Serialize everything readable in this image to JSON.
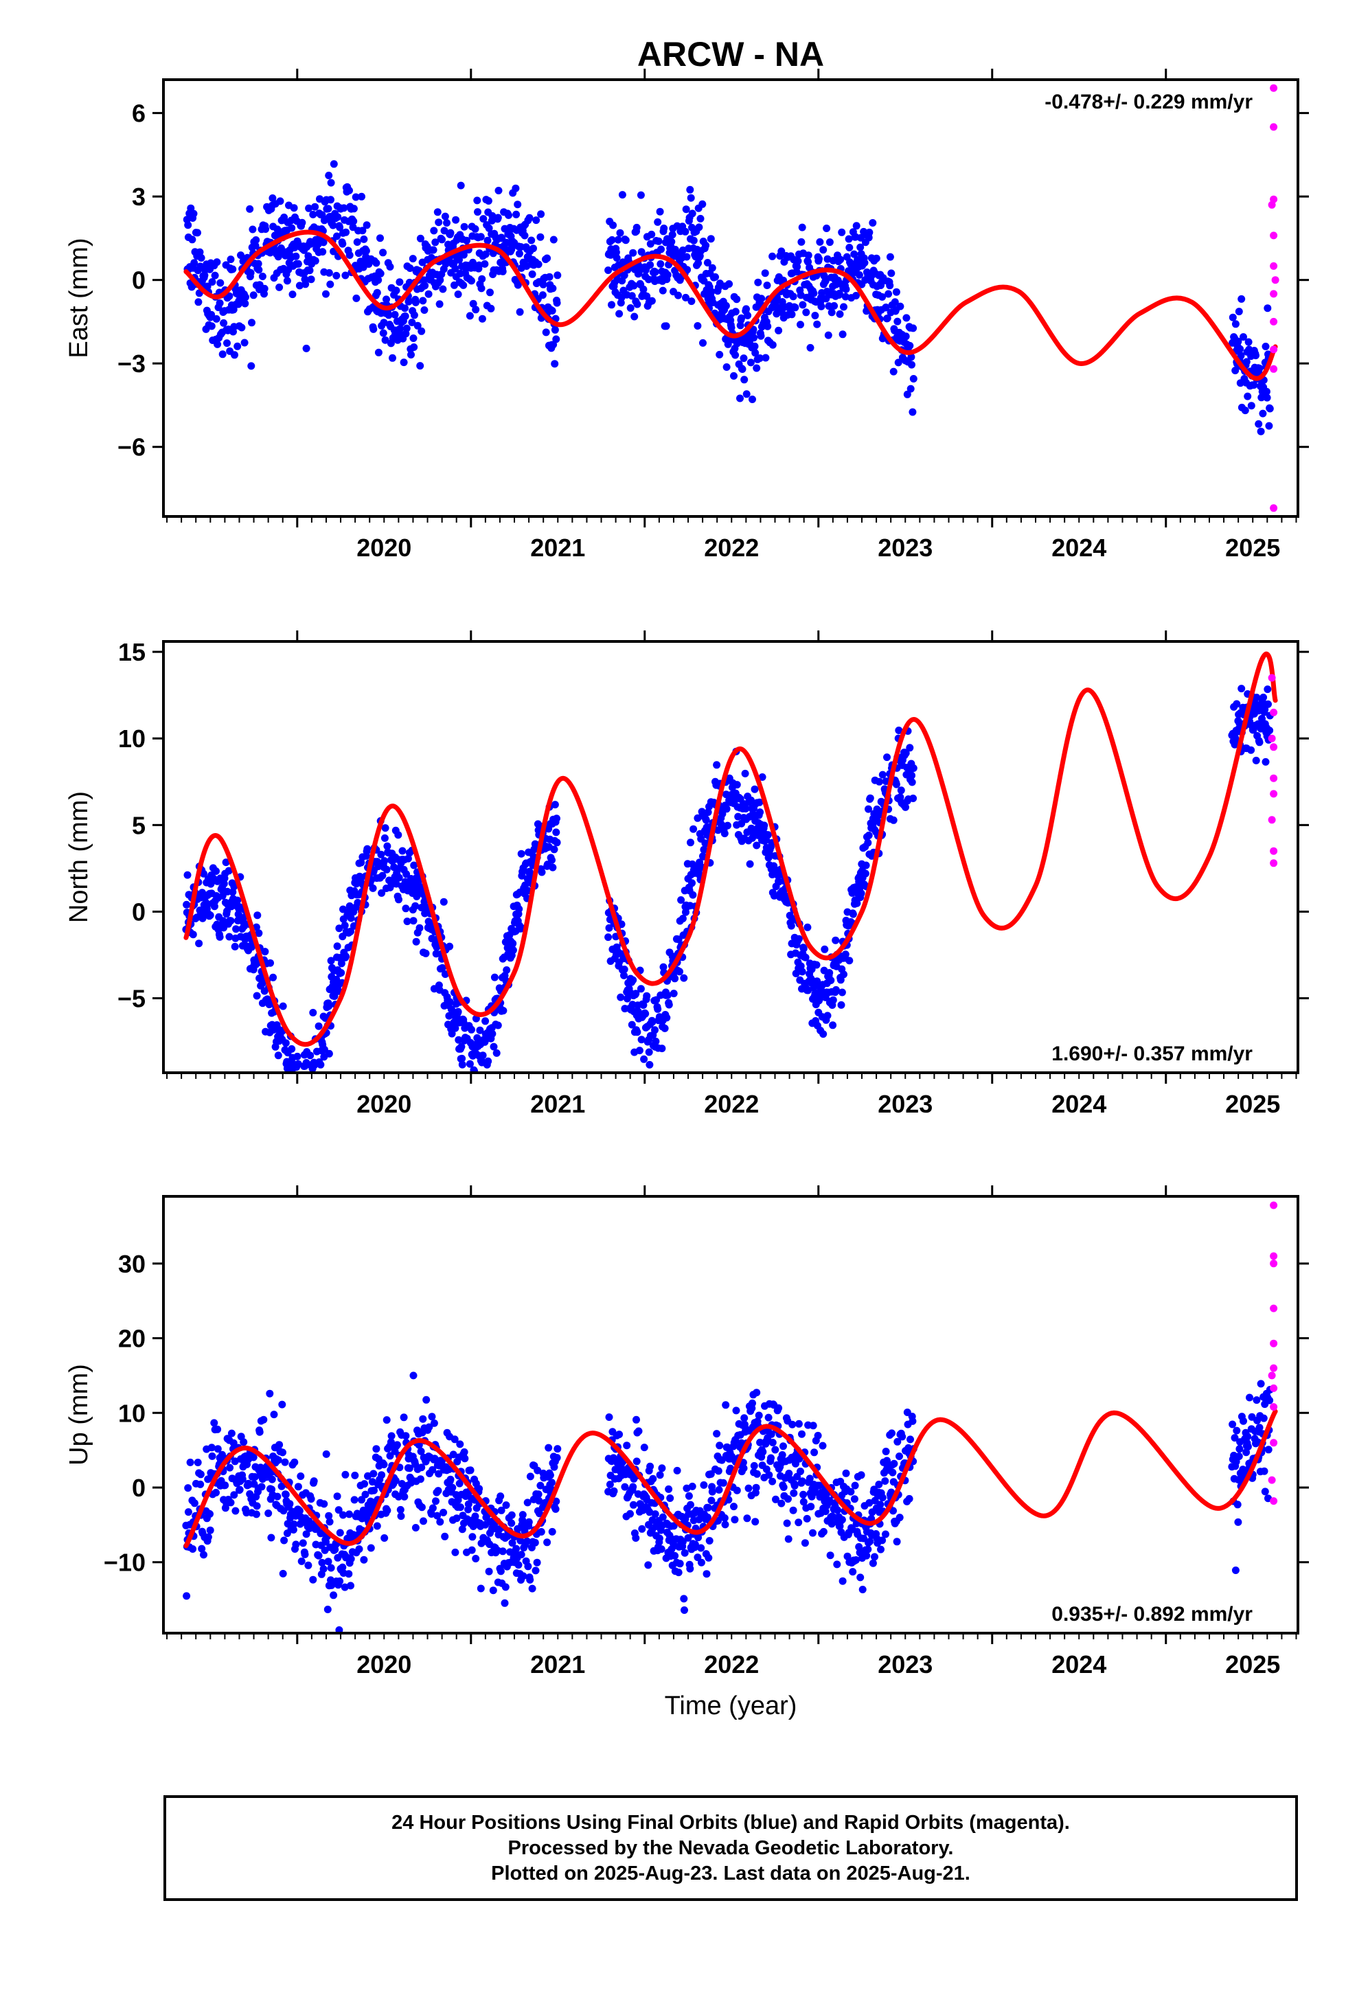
{
  "colors": {
    "final_orbits": "#0000ff",
    "rapid_orbits": "#ff00ff",
    "model_fit": "#ff0000",
    "frame": "#000000",
    "grid": "none"
  },
  "chart_data": [
    {
      "type": "scatter",
      "title": "ARCW - NA",
      "ylabel": "East (mm)",
      "xlabel": "",
      "xlim": [
        2019.23,
        2025.76
      ],
      "ylim": [
        -8.5,
        7.2
      ],
      "x_ticks": [
        2020,
        2021,
        2022,
        2023,
        2024,
        2025
      ],
      "y_ticks": [
        6,
        3,
        0,
        -3,
        -6
      ],
      "rate_label": "-0.478+/- 0.229 mm/yr",
      "rate_label_position": "top-right",
      "final_segments": [
        [
          2019.36,
          2021.5
        ],
        [
          2021.79,
          2023.55
        ],
        [
          2025.38,
          2025.6
        ]
      ],
      "model": {
        "mean": -0.4,
        "trend": -0.478,
        "annual_amp": 1.3,
        "annual_peak": 0.1,
        "semiannual_amp": 0.7,
        "semiannual_peak": 0.3,
        "noise": 0.9
      },
      "model_curve": [
        [
          2019.36,
          0.3
        ],
        [
          2019.55,
          -0.6
        ],
        [
          2019.8,
          1.1
        ],
        [
          2020.15,
          1.6
        ],
        [
          2020.5,
          -1.0
        ],
        [
          2020.8,
          0.7
        ],
        [
          2021.15,
          1.1
        ],
        [
          2021.5,
          -1.6
        ],
        [
          2021.85,
          0.3
        ],
        [
          2022.15,
          0.7
        ],
        [
          2022.5,
          -2.0
        ],
        [
          2022.8,
          -0.2
        ],
        [
          2023.15,
          0.2
        ],
        [
          2023.5,
          -2.6
        ],
        [
          2023.85,
          -0.8
        ],
        [
          2024.15,
          -0.4
        ],
        [
          2024.5,
          -3.0
        ],
        [
          2024.85,
          -1.2
        ],
        [
          2025.15,
          -0.8
        ],
        [
          2025.5,
          -3.5
        ],
        [
          2025.63,
          -2.4
        ]
      ],
      "rapid_points": [
        [
          2025.62,
          6.9
        ],
        [
          2025.62,
          5.5
        ],
        [
          2025.61,
          2.7
        ],
        [
          2025.62,
          2.9
        ],
        [
          2025.62,
          1.6
        ],
        [
          2025.62,
          0.5
        ],
        [
          2025.63,
          0.0
        ],
        [
          2025.62,
          -0.5
        ],
        [
          2025.62,
          -1.5
        ],
        [
          2025.62,
          -2.5
        ],
        [
          2025.62,
          -3.2
        ],
        [
          2025.62,
          -8.2
        ]
      ]
    },
    {
      "type": "scatter",
      "title": "",
      "ylabel": "North (mm)",
      "xlabel": "",
      "xlim": [
        2019.23,
        2025.76
      ],
      "ylim": [
        -9.3,
        15.6
      ],
      "x_ticks": [
        2020,
        2021,
        2022,
        2023,
        2024,
        2025
      ],
      "y_ticks": [
        15,
        10,
        5,
        0,
        -5
      ],
      "rate_label": "1.690+/- 0.357 mm/yr",
      "rate_label_position": "bottom-right",
      "final_segments": [
        [
          2019.36,
          2021.5
        ],
        [
          2021.79,
          2023.55
        ],
        [
          2025.38,
          2025.6
        ]
      ],
      "model": {
        "mean": 1.0,
        "trend": 1.69,
        "annual_amp": 6.0,
        "annual_peak": 0.52,
        "semiannual_amp": 1.0,
        "semiannual_peak": 0.3,
        "noise": 1.1
      },
      "model_curve": [
        [
          2019.36,
          -1.5
        ],
        [
          2019.55,
          4.3
        ],
        [
          2019.95,
          -7.0
        ],
        [
          2020.25,
          -5.0
        ],
        [
          2020.55,
          6.1
        ],
        [
          2020.95,
          -5.2
        ],
        [
          2021.25,
          -3.5
        ],
        [
          2021.53,
          7.7
        ],
        [
          2021.95,
          -3.5
        ],
        [
          2022.25,
          -1.5
        ],
        [
          2022.55,
          9.4
        ],
        [
          2022.95,
          -2.0
        ],
        [
          2023.25,
          0.0
        ],
        [
          2023.55,
          11.1
        ],
        [
          2023.95,
          -0.2
        ],
        [
          2024.25,
          1.5
        ],
        [
          2024.55,
          12.8
        ],
        [
          2024.95,
          1.5
        ],
        [
          2025.25,
          3.2
        ],
        [
          2025.55,
          14.5
        ],
        [
          2025.63,
          12.2
        ]
      ],
      "rapid_points": [
        [
          2025.61,
          13.5
        ],
        [
          2025.62,
          11.5
        ],
        [
          2025.61,
          10.0
        ],
        [
          2025.62,
          9.5
        ],
        [
          2025.62,
          7.7
        ],
        [
          2025.62,
          6.8
        ],
        [
          2025.61,
          5.3
        ],
        [
          2025.62,
          3.5
        ],
        [
          2025.62,
          2.8
        ]
      ]
    },
    {
      "type": "scatter",
      "title": "",
      "ylabel": "Up (mm)",
      "xlabel": "Time (year)",
      "xlim": [
        2019.23,
        2025.76
      ],
      "ylim": [
        -19.5,
        39.0
      ],
      "x_ticks": [
        2020,
        2021,
        2022,
        2023,
        2024,
        2025
      ],
      "y_ticks": [
        30,
        20,
        10,
        0,
        -10
      ],
      "rate_label": "0.935+/- 0.892 mm/yr",
      "rate_label_position": "bottom-right",
      "final_segments": [
        [
          2019.36,
          2021.5
        ],
        [
          2021.79,
          2023.55
        ],
        [
          2025.38,
          2025.6
        ]
      ],
      "model": {
        "mean": 0.0,
        "trend": 0.935,
        "annual_amp": 6.0,
        "annual_peak": 0.7,
        "semiannual_amp": 1.0,
        "semiannual_peak": 0.5,
        "noise": 3.6
      },
      "model_curve": [
        [
          2019.36,
          -7.8
        ],
        [
          2019.7,
          5.3
        ],
        [
          2020.3,
          -7.5
        ],
        [
          2020.7,
          6.3
        ],
        [
          2021.3,
          -6.5
        ],
        [
          2021.7,
          7.3
        ],
        [
          2022.3,
          -6.0
        ],
        [
          2022.7,
          8.2
        ],
        [
          2023.3,
          -4.8
        ],
        [
          2023.7,
          9.1
        ],
        [
          2024.3,
          -3.8
        ],
        [
          2024.7,
          10.0
        ],
        [
          2025.3,
          -2.8
        ],
        [
          2025.63,
          10.2
        ]
      ],
      "rapid_points": [
        [
          2025.62,
          37.8
        ],
        [
          2025.62,
          31.0
        ],
        [
          2025.62,
          30.0
        ],
        [
          2025.62,
          24.0
        ],
        [
          2025.62,
          19.3
        ],
        [
          2025.62,
          16.0
        ],
        [
          2025.61,
          15.0
        ],
        [
          2025.62,
          13.3
        ],
        [
          2025.62,
          10.8
        ],
        [
          2025.62,
          6.0
        ],
        [
          2025.61,
          1.0
        ],
        [
          2025.62,
          -1.8
        ]
      ]
    }
  ],
  "footer": {
    "line1": "24 Hour Positions Using Final Orbits (blue) and Rapid Orbits (magenta).",
    "line2": "Processed by the Nevada Geodetic Laboratory.",
    "line3": "Plotted on 2025-Aug-23. Last data on 2025-Aug-21."
  }
}
